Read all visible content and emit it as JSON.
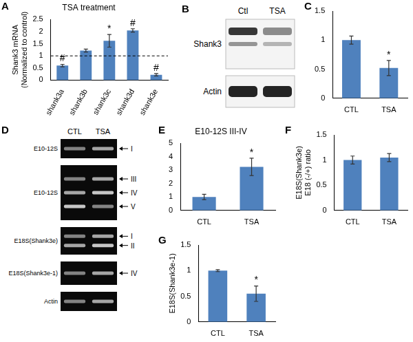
{
  "chart_data": [
    {
      "panel": "A",
      "type": "bar",
      "title": "TSA treatment",
      "y_label": [
        "Shank3 mRNA",
        "(Normalized to control)"
      ],
      "categories": [
        "shank3a",
        "shank3b",
        "shank3c",
        "shank3d",
        "shank3e"
      ],
      "values": [
        0.6,
        1.22,
        1.62,
        2.05,
        0.22
      ],
      "error": [
        0.05,
        0.06,
        0.26,
        0.07,
        0.05
      ],
      "annotations": [
        "#",
        null,
        "*",
        "#",
        "#"
      ],
      "reference_line": 1,
      "ylim": [
        0,
        2.5
      ],
      "yticks": [
        0,
        0.5,
        1,
        1.5,
        2,
        2.5
      ],
      "color": "#4f81bd",
      "grid": false
    },
    {
      "panel": "C",
      "type": "bar",
      "categories": [
        "CTL",
        "TSA"
      ],
      "values": [
        1.0,
        0.52
      ],
      "error": [
        0.07,
        0.13
      ],
      "annotations": [
        null,
        "*"
      ],
      "ylim": [
        0,
        1.5
      ],
      "yticks": [
        0,
        0.5,
        1,
        1.5
      ],
      "color": "#4f81bd",
      "grid": false
    },
    {
      "panel": "E",
      "type": "bar",
      "title": "E10-12S III-IV",
      "categories": [
        "CTL",
        "TSA"
      ],
      "values": [
        1.0,
        3.25
      ],
      "error": [
        0.2,
        0.65
      ],
      "annotations": [
        null,
        "*"
      ],
      "ylim": [
        0,
        5
      ],
      "yticks": [
        0,
        1,
        2,
        3,
        4,
        5
      ],
      "color": "#4f81bd",
      "grid": false
    },
    {
      "panel": "F",
      "type": "bar",
      "y_label": [
        "E18S(Shank3e)",
        "E18 (-/+) ratio"
      ],
      "categories": [
        "CTL",
        "TSA"
      ],
      "values": [
        1.0,
        1.05
      ],
      "error": [
        0.08,
        0.08
      ],
      "ylim": [
        0,
        1.5
      ],
      "yticks": [
        0,
        0.5,
        1,
        1.5
      ],
      "color": "#4f81bd",
      "grid": false
    },
    {
      "panel": "G",
      "type": "bar",
      "y_label": "E18S(Shank3e-1)",
      "categories": [
        "CTL",
        "TSA"
      ],
      "values": [
        1.0,
        0.55
      ],
      "error": [
        0.02,
        0.15
      ],
      "annotations": [
        null,
        "*"
      ],
      "ylim": [
        0,
        1.5
      ],
      "yticks": [
        0,
        0.5,
        1,
        1.5
      ],
      "color": "#4f81bd",
      "grid": false
    }
  ],
  "blots": [
    {
      "panel": "B",
      "lanes": [
        "Ctl",
        "TSA"
      ],
      "rows": [
        {
          "label": "Shank3"
        },
        {
          "label": "Actin"
        }
      ]
    },
    {
      "panel": "D",
      "lanes": [
        "CTL",
        "TSA"
      ],
      "rows": [
        {
          "label": "E10-12S",
          "bands": [
            "I"
          ]
        },
        {
          "label": "E10-12S",
          "bands": [
            "III",
            "IV",
            "V"
          ]
        },
        {
          "label": "E18S(Shank3e)",
          "bands": [
            "I",
            "II"
          ]
        },
        {
          "label": "E18S(Shank3e-1)",
          "bands": [
            "IV"
          ]
        },
        {
          "label": "Actin"
        }
      ]
    }
  ]
}
